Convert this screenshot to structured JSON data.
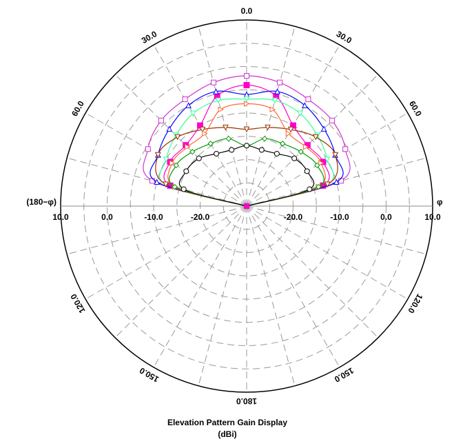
{
  "chart_data": {
    "type": "polar",
    "title": "Elevation Pattern Gain Display",
    "subtitle": "(dBi)",
    "radial_ticks": [
      "10.0",
      "0.0",
      "-10.0",
      "-20.0"
    ],
    "radial_range": [
      -30,
      10
    ],
    "angle_labels": [
      {
        "text": "0.0",
        "deg": 0
      },
      {
        "text": "30.0",
        "deg": 30
      },
      {
        "text": "60.0",
        "deg": 60
      },
      {
        "text": "120.0",
        "deg": 120
      },
      {
        "text": "150.0",
        "deg": 150
      },
      {
        "text": "180.0",
        "deg": 180
      },
      {
        "text": "150.0",
        "deg": -150
      },
      {
        "text": "120.0",
        "deg": -120
      },
      {
        "text": "60.0",
        "deg": -60
      },
      {
        "text": "30.0",
        "deg": -30
      }
    ],
    "left_axis_label": "(180−φ)",
    "right_axis_label": "φ",
    "grid": true,
    "series": [
      {
        "color": "#cc33cc",
        "marker": "square-open",
        "angles": [
          -90,
          -75,
          -60,
          -45,
          -30,
          -15,
          0,
          15,
          30,
          45,
          60,
          75,
          90
        ],
        "gains": [
          -30,
          -9,
          -5.5,
          -4,
          -3.5,
          -2.5,
          -2,
          -2.5,
          -3.5,
          -4,
          -5.5,
          -9,
          -30
        ]
      },
      {
        "color": "#ff00cc",
        "marker": "square-filled",
        "angles": [
          -90,
          -75,
          -60,
          -45,
          -30,
          -15,
          0,
          15,
          30,
          45,
          60,
          75,
          90
        ],
        "gains": [
          -30,
          -13,
          -11,
          -11.5,
          -10,
          -5.5,
          -4,
          -5.5,
          -10,
          -11.5,
          -11,
          -13,
          -30
        ]
      },
      {
        "color": "#0000ff",
        "marker": "triangle-up",
        "angles": [
          -90,
          -75,
          -60,
          -45,
          -30,
          -15,
          0,
          15,
          30,
          45,
          60,
          75,
          90
        ],
        "gains": [
          -30,
          -10,
          -8,
          -6.5,
          -5,
          -4.5,
          -6,
          -4.5,
          -5,
          -6.5,
          -8,
          -10,
          -30
        ]
      },
      {
        "color": "#33ff99",
        "marker": "triangle-down",
        "angles": [
          -90,
          -75,
          -60,
          -45,
          -30,
          -15,
          0,
          15,
          30,
          45,
          60,
          75,
          90
        ],
        "gains": [
          -30,
          -12,
          -10,
          -8.5,
          -7,
          -6.5,
          -7,
          -6.5,
          -7,
          -8.5,
          -10,
          -12,
          -30
        ]
      },
      {
        "color": "#993300",
        "marker": "triangle-down",
        "angles": [
          -90,
          -75,
          -60,
          -45,
          -30,
          -15,
          0,
          15,
          30,
          45,
          60,
          75,
          90
        ],
        "gains": [
          -30,
          -12,
          -8,
          -9,
          -11,
          -12.5,
          -13.5,
          -12.5,
          -11,
          -9,
          -8,
          -12,
          -30
        ]
      },
      {
        "color": "#ff6633",
        "marker": "triangle-right",
        "angles": [
          -90,
          -75,
          -60,
          -45,
          -30,
          -15,
          0,
          15,
          30,
          45,
          60,
          75,
          90
        ],
        "gains": [
          -30,
          -14,
          -11.5,
          -12,
          -12,
          -8.5,
          -8,
          -8.5,
          -12,
          -12,
          -11.5,
          -14,
          -30
        ]
      },
      {
        "color": "#009900",
        "marker": "diamond",
        "angles": [
          -90,
          -75,
          -60,
          -45,
          -30,
          -15,
          0,
          15,
          30,
          45,
          60,
          75,
          90
        ],
        "gains": [
          -30,
          -14,
          -12.5,
          -13.5,
          -14.5,
          -15,
          -17,
          -15,
          -14.5,
          -13.5,
          -12.5,
          -14,
          -30
        ]
      },
      {
        "color": "#000000",
        "marker": "circle",
        "angles": [
          -90,
          -75,
          -60,
          -45,
          -30,
          -15,
          0,
          15,
          30,
          45,
          60,
          75,
          90
        ],
        "gains": [
          -30,
          -16,
          -15,
          -15.5,
          -17,
          -17.5,
          -17,
          -17.5,
          -17,
          -15.5,
          -15,
          -16,
          -30
        ]
      }
    ]
  },
  "footer": {
    "title_line1": "Elevation Pattern Gain Display",
    "title_line2": "(dBi)"
  }
}
